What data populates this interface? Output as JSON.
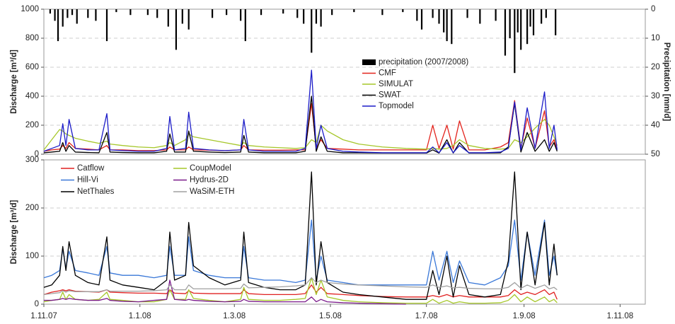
{
  "chart_data": [
    {
      "type": "line",
      "ylabel": "Discharge [m³/d]",
      "y2label": "Precipitation [mm/d]",
      "xlim": [
        "2007-11-01",
        "2008-11-17"
      ],
      "ylim": [
        0,
        1000
      ],
      "yticks": [
        0,
        200,
        400,
        600,
        800,
        1000
      ],
      "y2lim": [
        50,
        0
      ],
      "y2ticks": [
        0,
        10,
        20,
        30,
        40,
        50
      ],
      "grid": true,
      "legend": "center",
      "legend_columns": 1,
      "x": [
        "2007-11-01",
        "2007-11-06",
        "2007-11-11",
        "2007-11-13",
        "2007-11-15",
        "2007-11-17",
        "2007-11-21",
        "2007-11-29",
        "2007-12-06",
        "2007-12-11",
        "2007-12-13",
        "2007-12-21",
        "2007-12-31",
        "2008-01-10",
        "2008-01-18",
        "2008-01-20",
        "2008-01-23",
        "2008-01-30",
        "2008-02-01",
        "2008-02-04",
        "2008-02-14",
        "2008-02-24",
        "2008-03-05",
        "2008-03-07",
        "2008-03-10",
        "2008-03-20",
        "2008-03-30",
        "2008-04-09",
        "2008-04-15",
        "2008-04-19",
        "2008-04-22",
        "2008-04-25",
        "2008-04-29",
        "2008-05-09",
        "2008-05-19",
        "2008-06-03",
        "2008-06-18",
        "2008-07-01",
        "2008-07-05",
        "2008-07-09",
        "2008-07-14",
        "2008-07-18",
        "2008-07-22",
        "2008-07-28",
        "2008-08-07",
        "2008-08-17",
        "2008-08-22",
        "2008-08-26",
        "2008-08-30",
        "2008-09-03",
        "2008-09-08",
        "2008-09-14",
        "2008-09-17",
        "2008-09-20",
        "2008-09-22"
      ],
      "series": [
        {
          "name": "precipitation (2007/2008)",
          "type": "bar",
          "axis": "y2",
          "color": "#000000",
          "x": [
            "2007-11-05",
            "2007-11-08",
            "2007-11-10",
            "2007-11-13",
            "2007-11-16",
            "2007-11-19",
            "2007-11-22",
            "2007-11-29",
            "2007-12-04",
            "2007-12-11",
            "2007-12-17",
            "2007-12-26",
            "2008-01-06",
            "2008-01-12",
            "2008-01-19",
            "2008-01-24",
            "2008-01-28",
            "2008-02-01",
            "2008-02-16",
            "2008-02-25",
            "2008-03-05",
            "2008-03-08",
            "2008-03-18",
            "2008-04-01",
            "2008-04-10",
            "2008-04-14",
            "2008-04-19",
            "2008-04-22",
            "2008-04-25",
            "2008-05-02",
            "2008-05-16",
            "2008-06-03",
            "2008-06-16",
            "2008-06-25",
            "2008-06-28",
            "2008-07-05",
            "2008-07-09",
            "2008-07-12",
            "2008-07-14",
            "2008-07-17",
            "2008-07-27",
            "2008-08-04",
            "2008-08-14",
            "2008-08-20",
            "2008-08-23",
            "2008-08-26",
            "2008-08-28",
            "2008-08-30",
            "2008-09-03",
            "2008-09-05",
            "2008-09-07",
            "2008-09-12",
            "2008-09-15",
            "2008-09-21"
          ],
          "values": [
            1.5,
            4,
            11,
            6,
            3,
            2,
            5,
            3,
            4,
            11,
            1,
            2,
            2,
            3,
            6,
            14,
            5,
            7,
            3,
            2,
            4,
            11,
            2,
            1.5,
            3,
            5,
            15,
            5,
            6,
            2,
            1,
            2,
            1,
            4,
            7,
            3,
            5,
            8,
            11,
            12,
            3,
            5,
            4,
            16,
            10,
            22,
            8,
            14,
            12,
            6,
            9,
            5,
            3,
            9
          ]
        },
        {
          "name": "CMF",
          "color": "#e3231c",
          "values": [
            20,
            30,
            35,
            60,
            40,
            80,
            40,
            35,
            30,
            60,
            30,
            30,
            25,
            25,
            30,
            50,
            30,
            30,
            50,
            30,
            28,
            25,
            30,
            60,
            30,
            28,
            28,
            30,
            30,
            350,
            40,
            100,
            40,
            35,
            30,
            30,
            30,
            30,
            200,
            40,
            200,
            35,
            230,
            30,
            30,
            50,
            80,
            370,
            40,
            250,
            40,
            300,
            50,
            100,
            30
          ]
        },
        {
          "name": "SIMULAT",
          "color": "#a6c72a",
          "values": [
            30,
            100,
            170,
            160,
            140,
            130,
            110,
            90,
            75,
            90,
            70,
            60,
            50,
            45,
            60,
            80,
            60,
            100,
            140,
            120,
            100,
            80,
            60,
            80,
            60,
            50,
            45,
            40,
            45,
            100,
            80,
            200,
            160,
            100,
            70,
            50,
            40,
            35,
            40,
            35,
            40,
            60,
            100,
            60,
            40,
            35,
            40,
            100,
            80,
            120,
            180,
            240,
            200,
            120,
            60
          ]
        },
        {
          "name": "SWAT",
          "color": "#000000",
          "values": [
            10,
            15,
            20,
            80,
            20,
            60,
            15,
            12,
            10,
            150,
            15,
            12,
            10,
            10,
            20,
            140,
            15,
            15,
            160,
            20,
            15,
            12,
            15,
            130,
            15,
            10,
            10,
            10,
            20,
            400,
            20,
            120,
            20,
            10,
            10,
            8,
            8,
            8,
            30,
            8,
            100,
            8,
            80,
            8,
            8,
            10,
            50,
            350,
            15,
            150,
            20,
            100,
            20,
            80,
            20
          ]
        },
        {
          "name": "Topmodel",
          "color": "#1c1cc8",
          "values": [
            20,
            40,
            60,
            210,
            60,
            240,
            40,
            30,
            30,
            280,
            30,
            25,
            20,
            20,
            40,
            260,
            30,
            40,
            290,
            40,
            30,
            25,
            30,
            240,
            30,
            20,
            20,
            20,
            40,
            580,
            40,
            200,
            40,
            20,
            15,
            10,
            10,
            10,
            50,
            10,
            80,
            10,
            60,
            10,
            10,
            15,
            40,
            360,
            30,
            320,
            40,
            430,
            40,
            200,
            30
          ]
        }
      ]
    },
    {
      "type": "line",
      "ylabel": "Discharge [m³/d]",
      "xlim": [
        "2007-11-01",
        "2008-11-17"
      ],
      "xticks": [
        {
          "value": "2007-11-01",
          "label": "1.11.07"
        },
        {
          "value": "2008-01-01",
          "label": "1.1.08"
        },
        {
          "value": "2008-03-01",
          "label": "1.3.08"
        },
        {
          "value": "2008-05-01",
          "label": "1.5.08"
        },
        {
          "value": "2008-07-01",
          "label": "1.7.08"
        },
        {
          "value": "2008-09-01",
          "label": "1.9.08"
        },
        {
          "value": "2008-11-01",
          "label": "1.11.08"
        }
      ],
      "ylim": [
        0,
        300
      ],
      "yticks": [
        0,
        100,
        200,
        300
      ],
      "grid": true,
      "legend": "upper left",
      "legend_columns": 2,
      "x": [
        "2007-11-01",
        "2007-11-06",
        "2007-11-11",
        "2007-11-13",
        "2007-11-15",
        "2007-11-17",
        "2007-11-21",
        "2007-11-29",
        "2007-12-06",
        "2007-12-11",
        "2007-12-13",
        "2007-12-21",
        "2007-12-31",
        "2008-01-10",
        "2008-01-18",
        "2008-01-20",
        "2008-01-23",
        "2008-01-30",
        "2008-02-01",
        "2008-02-04",
        "2008-02-14",
        "2008-02-24",
        "2008-03-05",
        "2008-03-07",
        "2008-03-10",
        "2008-03-20",
        "2008-03-30",
        "2008-04-09",
        "2008-04-15",
        "2008-04-19",
        "2008-04-22",
        "2008-04-25",
        "2008-04-29",
        "2008-05-09",
        "2008-05-19",
        "2008-06-03",
        "2008-06-18",
        "2008-07-01",
        "2008-07-05",
        "2008-07-09",
        "2008-07-14",
        "2008-07-18",
        "2008-07-22",
        "2008-07-28",
        "2008-08-07",
        "2008-08-17",
        "2008-08-22",
        "2008-08-26",
        "2008-08-30",
        "2008-09-03",
        "2008-09-08",
        "2008-09-14",
        "2008-09-17",
        "2008-09-20",
        "2008-09-22"
      ],
      "series": [
        {
          "name": "Catflow",
          "color": "#e02020",
          "values": [
            20,
            25,
            28,
            30,
            28,
            30,
            27,
            26,
            25,
            30,
            25,
            24,
            23,
            23,
            22,
            30,
            23,
            22,
            28,
            23,
            22,
            22,
            22,
            30,
            22,
            20,
            20,
            20,
            22,
            40,
            25,
            35,
            22,
            20,
            18,
            16,
            15,
            15,
            18,
            15,
            20,
            15,
            18,
            15,
            15,
            15,
            18,
            30,
            20,
            25,
            20,
            30,
            20,
            25,
            10
          ]
        },
        {
          "name": "CoupModel",
          "color": "#a6c72a",
          "values": [
            5,
            8,
            10,
            25,
            10,
            20,
            10,
            8,
            10,
            25,
            10,
            8,
            5,
            5,
            10,
            30,
            10,
            10,
            30,
            12,
            8,
            5,
            10,
            35,
            10,
            8,
            8,
            10,
            12,
            55,
            20,
            50,
            15,
            8,
            5,
            3,
            2,
            2,
            10,
            2,
            8,
            2,
            5,
            2,
            2,
            3,
            8,
            20,
            5,
            15,
            5,
            15,
            5,
            10,
            3
          ]
        },
        {
          "name": "Hill-Vi",
          "color": "#3a78d8",
          "values": [
            55,
            60,
            70,
            115,
            75,
            110,
            70,
            65,
            60,
            120,
            65,
            60,
            60,
            55,
            60,
            120,
            60,
            60,
            140,
            70,
            60,
            55,
            55,
            120,
            55,
            50,
            50,
            45,
            50,
            175,
            50,
            100,
            50,
            45,
            40,
            40,
            40,
            40,
            110,
            50,
            110,
            45,
            90,
            45,
            40,
            55,
            80,
            175,
            50,
            150,
            60,
            175,
            60,
            100,
            60
          ]
        },
        {
          "name": "Hydrus-2D",
          "color": "#7a1a8a",
          "values": [
            8,
            8,
            10,
            12,
            10,
            12,
            10,
            8,
            8,
            12,
            8,
            6,
            5,
            8,
            10,
            50,
            10,
            8,
            10,
            8,
            6,
            5,
            6,
            10,
            6,
            5,
            5,
            5,
            5,
            15,
            5,
            10,
            5,
            3,
            2,
            1,
            0,
            null,
            null,
            null,
            null,
            null,
            null,
            null,
            null,
            null,
            null,
            null,
            null,
            null,
            null,
            null,
            null,
            null,
            null
          ]
        },
        {
          "name": "NetThales",
          "color": "#000000",
          "values": [
            35,
            40,
            60,
            120,
            70,
            130,
            60,
            45,
            40,
            140,
            50,
            40,
            35,
            30,
            50,
            150,
            50,
            60,
            170,
            80,
            55,
            40,
            50,
            150,
            45,
            35,
            30,
            30,
            40,
            275,
            40,
            130,
            45,
            25,
            20,
            15,
            10,
            10,
            70,
            20,
            100,
            15,
            80,
            20,
            15,
            20,
            90,
            275,
            30,
            150,
            40,
            170,
            40,
            125,
            60
          ]
        },
        {
          "name": "WaSiM-ETH",
          "color": "#a0a0a0",
          "values": [
            20,
            22,
            24,
            28,
            25,
            28,
            26,
            26,
            26,
            30,
            27,
            27,
            27,
            28,
            30,
            40,
            30,
            30,
            40,
            32,
            32,
            32,
            33,
            42,
            34,
            35,
            36,
            38,
            40,
            55,
            45,
            50,
            45,
            42,
            40,
            38,
            36,
            35,
            40,
            35,
            38,
            34,
            35,
            33,
            32,
            32,
            35,
            45,
            33,
            40,
            33,
            40,
            32,
            35,
            30
          ]
        }
      ]
    }
  ]
}
